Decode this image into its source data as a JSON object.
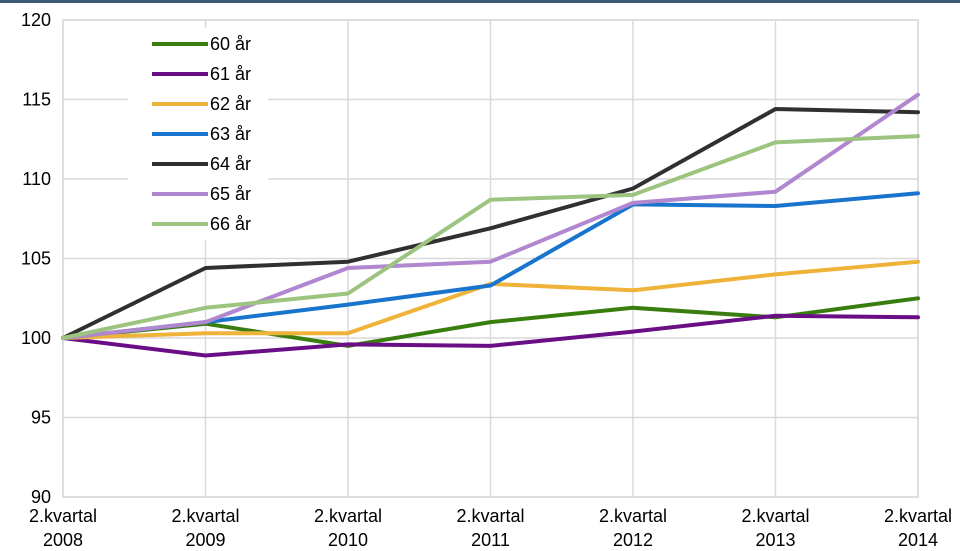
{
  "chart_data": {
    "type": "line",
    "title": "",
    "xlabel": "",
    "ylabel": "",
    "categories": [
      [
        "2.kvartal",
        "2008"
      ],
      [
        "2.kvartal",
        "2009"
      ],
      [
        "2.kvartal",
        "2010"
      ],
      [
        "2.kvartal",
        "2011"
      ],
      [
        "2.kvartal",
        "2012"
      ],
      [
        "2.kvartal",
        "2013"
      ],
      [
        "2.kvartal",
        "2014"
      ]
    ],
    "ylim": [
      90,
      120
    ],
    "yticks": [
      "90",
      "95",
      "100",
      "105",
      "110",
      "115",
      "120"
    ],
    "grid": true,
    "legend_position": "top-left",
    "series": [
      {
        "name": "60 år",
        "color": "#3a7d0f",
        "values": [
          [
            0,
            100
          ],
          [
            1,
            100.9
          ],
          [
            2,
            99.5
          ],
          [
            3,
            101.0
          ],
          [
            4,
            101.9
          ],
          [
            5,
            101.3
          ],
          [
            6,
            102.5
          ]
        ]
      },
      {
        "name": "61 år",
        "color": "#6a0e86",
        "values": [
          [
            0,
            100
          ],
          [
            1,
            98.9
          ],
          [
            2,
            99.6
          ],
          [
            3,
            99.5
          ],
          [
            4,
            100.4
          ],
          [
            5,
            101.4
          ],
          [
            6,
            101.3
          ]
        ]
      },
      {
        "name": "62 år",
        "color": "#f0b33a",
        "values": [
          [
            0,
            100
          ],
          [
            1,
            100.3
          ],
          [
            2,
            100.3
          ],
          [
            3,
            103.4
          ],
          [
            4,
            103.0
          ],
          [
            5,
            104.0
          ],
          [
            6,
            104.8
          ]
        ]
      },
      {
        "name": "63 år",
        "color": "#1874cd",
        "values": [
          [
            0,
            100
          ],
          [
            1,
            101.0
          ],
          [
            2,
            102.1
          ],
          [
            3,
            103.3
          ],
          [
            4,
            108.4
          ],
          [
            5,
            108.3
          ],
          [
            6,
            109.1
          ]
        ]
      },
      {
        "name": "64 år",
        "color": "#303030",
        "values": [
          [
            0,
            100
          ],
          [
            1,
            104.4
          ],
          [
            2,
            104.8
          ],
          [
            3,
            106.9
          ],
          [
            4,
            109.4
          ],
          [
            5,
            114.4
          ],
          [
            6,
            114.2
          ]
        ]
      },
      {
        "name": "65 år",
        "color": "#b187cf",
        "values": [
          [
            0,
            100
          ],
          [
            1,
            101.0
          ],
          [
            2,
            104.4
          ],
          [
            3,
            104.8
          ],
          [
            4,
            108.5
          ],
          [
            5,
            109.2
          ],
          [
            6,
            115.3
          ]
        ]
      },
      {
        "name": "66 år",
        "color": "#9cc47f",
        "values": [
          [
            0,
            100
          ],
          [
            1,
            101.9
          ],
          [
            2,
            102.8
          ],
          [
            3,
            108.7
          ],
          [
            4,
            109.0
          ],
          [
            5,
            112.3
          ],
          [
            6,
            112.7
          ]
        ]
      }
    ]
  }
}
